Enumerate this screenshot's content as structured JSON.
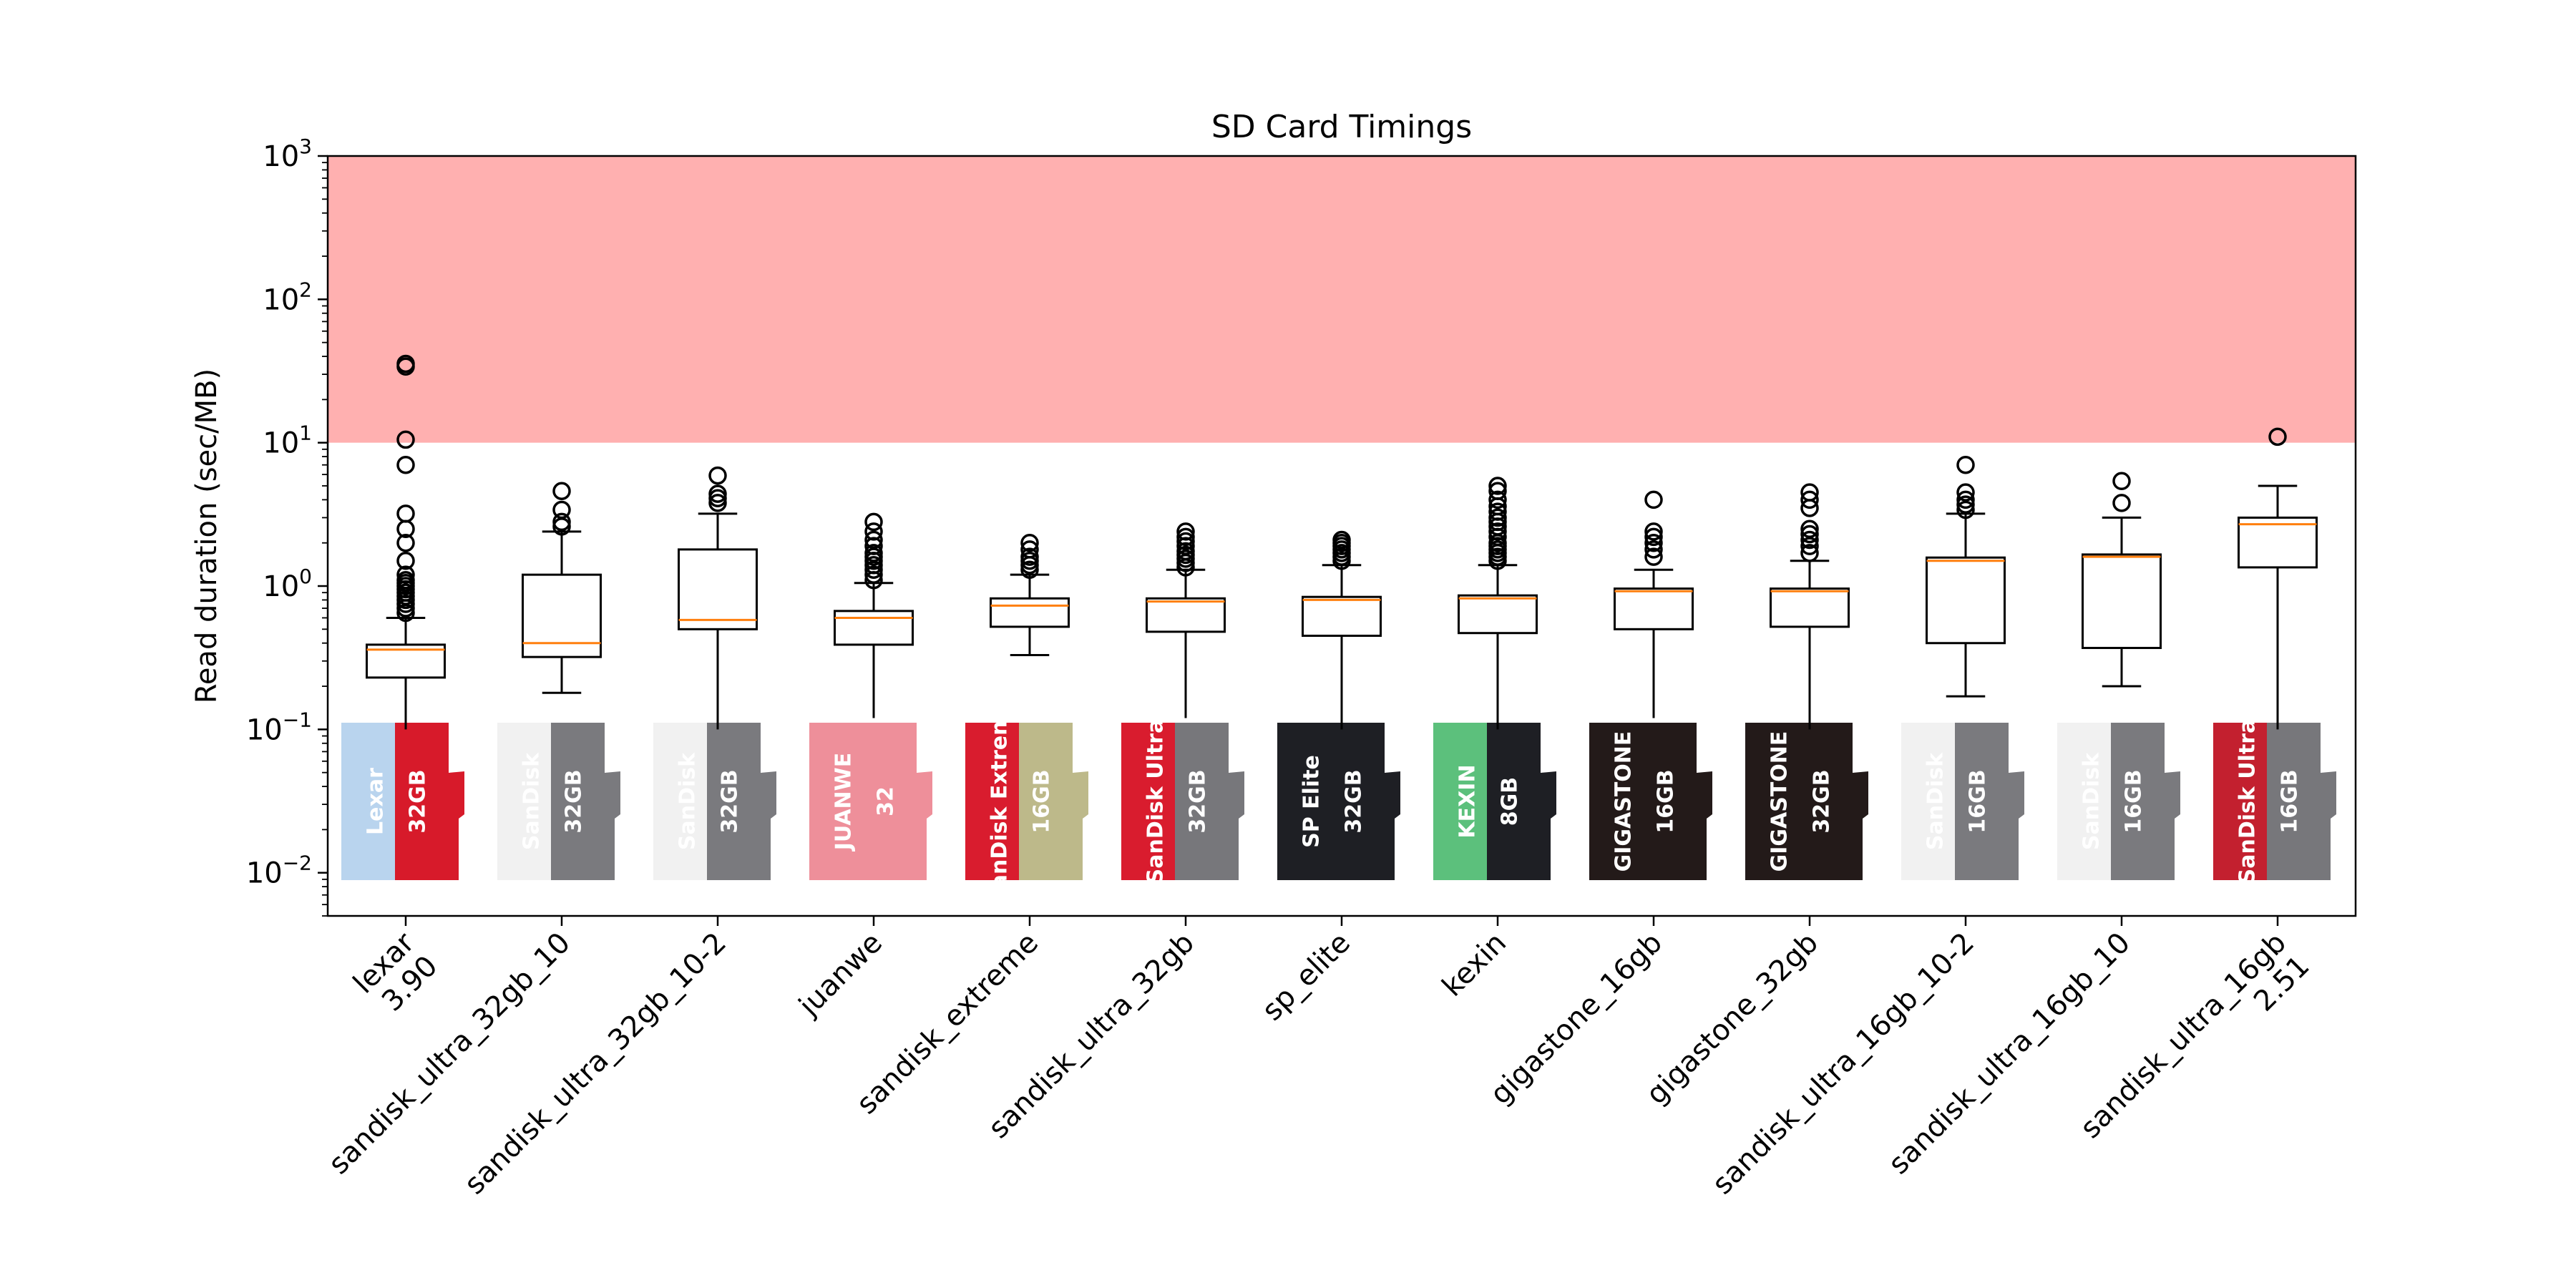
{
  "chart_data": {
    "type": "box",
    "title": "SD Card Timings",
    "ylabel": "Read duration (sec/MB)",
    "xlabel": "",
    "yscale": "log",
    "ylim": [
      0.005,
      1000
    ],
    "yticks": [
      {
        "value": 0.01,
        "base": "10",
        "exp": "−2"
      },
      {
        "value": 0.1,
        "base": "10",
        "exp": "−1"
      },
      {
        "value": 1,
        "base": "10",
        "exp": "0"
      },
      {
        "value": 10,
        "base": "10",
        "exp": "1"
      },
      {
        "value": 100,
        "base": "10",
        "exp": "2"
      },
      {
        "value": 1000,
        "base": "10",
        "exp": "3"
      }
    ],
    "threshold_band": {
      "from": 10,
      "to": 1000,
      "color": "#ffb0b0"
    },
    "median_color": "#ff7f0e",
    "grid": false,
    "categories": [
      {
        "label": "lexar",
        "note": "3.90",
        "q1": 0.23,
        "median": 0.36,
        "q3": 0.39,
        "whisker_low": 0.1,
        "whisker_high": 0.6,
        "outliers": [
          0.65,
          0.7,
          0.75,
          0.8,
          0.85,
          0.9,
          0.95,
          1.0,
          1.05,
          1.1,
          1.2,
          1.5,
          2.0,
          2.5,
          3.2,
          7.0,
          10.5,
          34.0,
          35.5
        ],
        "card": {
          "brand": "Lexar",
          "capacity": "32GB",
          "colors": [
            "#b9d4ee",
            "#d71a2a"
          ]
        }
      },
      {
        "label": "sandisk_ultra_32gb_10",
        "note": "",
        "q1": 0.32,
        "median": 0.4,
        "q3": 1.2,
        "whisker_low": 0.18,
        "whisker_high": 2.4,
        "outliers": [
          2.6,
          2.8,
          3.4,
          4.6
        ],
        "card": {
          "brand": "SanDisk",
          "capacity": "32GB",
          "colors": [
            "#f1f1f1",
            "#7a7a7e"
          ]
        }
      },
      {
        "label": "sandisk_ultra_32gb_10-2",
        "note": "",
        "q1": 0.5,
        "median": 0.58,
        "q3": 1.8,
        "whisker_low": 0.1,
        "whisker_high": 3.2,
        "outliers": [
          3.8,
          4.1,
          4.4,
          5.9
        ],
        "card": {
          "brand": "SanDisk",
          "capacity": "32GB",
          "colors": [
            "#f1f1f1",
            "#7a7a7e"
          ]
        }
      },
      {
        "label": "juanwe",
        "note": "",
        "q1": 0.39,
        "median": 0.6,
        "q3": 0.67,
        "whisker_low": 0.12,
        "whisker_high": 1.05,
        "outliers": [
          1.1,
          1.2,
          1.3,
          1.4,
          1.5,
          1.6,
          1.7,
          1.9,
          2.1,
          2.4,
          2.8
        ],
        "card": {
          "brand": "JUANWE",
          "capacity": "32",
          "colors": [
            "#ee8f9a",
            "#ee8f9a"
          ]
        }
      },
      {
        "label": "sandisk_extreme",
        "note": "",
        "q1": 0.52,
        "median": 0.73,
        "q3": 0.82,
        "whisker_low": 0.33,
        "whisker_high": 1.2,
        "outliers": [
          1.3,
          1.4,
          1.5,
          1.6,
          1.8,
          2.0
        ],
        "card": {
          "brand": "SanDisk Extreme",
          "capacity": "16GB",
          "colors": [
            "#d91c2e",
            "#bdb98a"
          ]
        }
      },
      {
        "label": "sandisk_ultra_32gb",
        "note": "",
        "q1": 0.48,
        "median": 0.78,
        "q3": 0.82,
        "whisker_low": 0.12,
        "whisker_high": 1.3,
        "outliers": [
          1.35,
          1.45,
          1.55,
          1.65,
          1.75,
          1.9,
          2.05,
          2.2,
          2.4
        ],
        "card": {
          "brand": "SanDisk Ultra",
          "capacity": "32GB",
          "colors": [
            "#d91c2e",
            "#77777b"
          ]
        }
      },
      {
        "label": "sp_elite",
        "note": "",
        "q1": 0.45,
        "median": 0.8,
        "q3": 0.84,
        "whisker_low": 0.1,
        "whisker_high": 1.4,
        "outliers": [
          1.5,
          1.6,
          1.7,
          1.8,
          1.9,
          2.0,
          2.1
        ],
        "card": {
          "brand": "SP Elite",
          "capacity": "32GB",
          "colors": [
            "#1e1f24",
            "#1e1f24"
          ]
        }
      },
      {
        "label": "kexin",
        "note": "",
        "q1": 0.47,
        "median": 0.82,
        "q3": 0.86,
        "whisker_low": 0.1,
        "whisker_high": 1.4,
        "outliers": [
          1.5,
          1.6,
          1.7,
          1.8,
          1.9,
          2.0,
          2.2,
          2.4,
          2.6,
          2.8,
          3.0,
          3.3,
          3.6,
          4.0,
          4.6,
          5.0
        ],
        "card": {
          "brand": "KEXIN",
          "capacity": "8GB",
          "colors": [
            "#5cc07c",
            "#1e1f24"
          ]
        }
      },
      {
        "label": "gigastone_16gb",
        "note": "",
        "q1": 0.5,
        "median": 0.92,
        "q3": 0.96,
        "whisker_low": 0.12,
        "whisker_high": 1.3,
        "outliers": [
          1.6,
          1.8,
          2.0,
          2.2,
          2.4,
          4.0
        ],
        "card": {
          "brand": "GIGASTONE",
          "capacity": "16GB",
          "colors": [
            "#231a19",
            "#231a19"
          ]
        }
      },
      {
        "label": "gigastone_32gb",
        "note": "",
        "q1": 0.52,
        "median": 0.92,
        "q3": 0.96,
        "whisker_low": 0.1,
        "whisker_high": 1.5,
        "outliers": [
          1.7,
          1.9,
          2.1,
          2.3,
          2.5,
          3.5,
          4.0,
          4.5
        ],
        "card": {
          "brand": "GIGASTONE",
          "capacity": "32GB",
          "colors": [
            "#231a19",
            "#231a19"
          ]
        }
      },
      {
        "label": "sandisk_ultra_16gb_10-2",
        "note": "",
        "q1": 0.4,
        "median": 1.5,
        "q3": 1.58,
        "whisker_low": 0.17,
        "whisker_high": 3.2,
        "outliers": [
          3.4,
          3.7,
          4.0,
          4.5,
          7.0
        ],
        "card": {
          "brand": "SanDisk",
          "capacity": "16GB",
          "colors": [
            "#f1f1f1",
            "#7a7a7e"
          ]
        }
      },
      {
        "label": "sandisk_ultra_16gb_10",
        "note": "",
        "q1": 0.37,
        "median": 1.6,
        "q3": 1.66,
        "whisker_low": 0.2,
        "whisker_high": 3.0,
        "outliers": [
          3.8,
          5.4
        ],
        "card": {
          "brand": "SanDisk",
          "capacity": "16GB",
          "colors": [
            "#f1f1f1",
            "#7a7a7e"
          ]
        }
      },
      {
        "label": "sandisk_ultra_16gb",
        "note": "2.51",
        "q1": 1.35,
        "median": 2.7,
        "q3": 3.0,
        "whisker_low": 0.1,
        "whisker_high": 5.0,
        "outliers": [
          11.0
        ],
        "card": {
          "brand": "SanDisk Ultra",
          "capacity": "16GB",
          "colors": [
            "#c3202f",
            "#77777b"
          ]
        }
      }
    ]
  }
}
